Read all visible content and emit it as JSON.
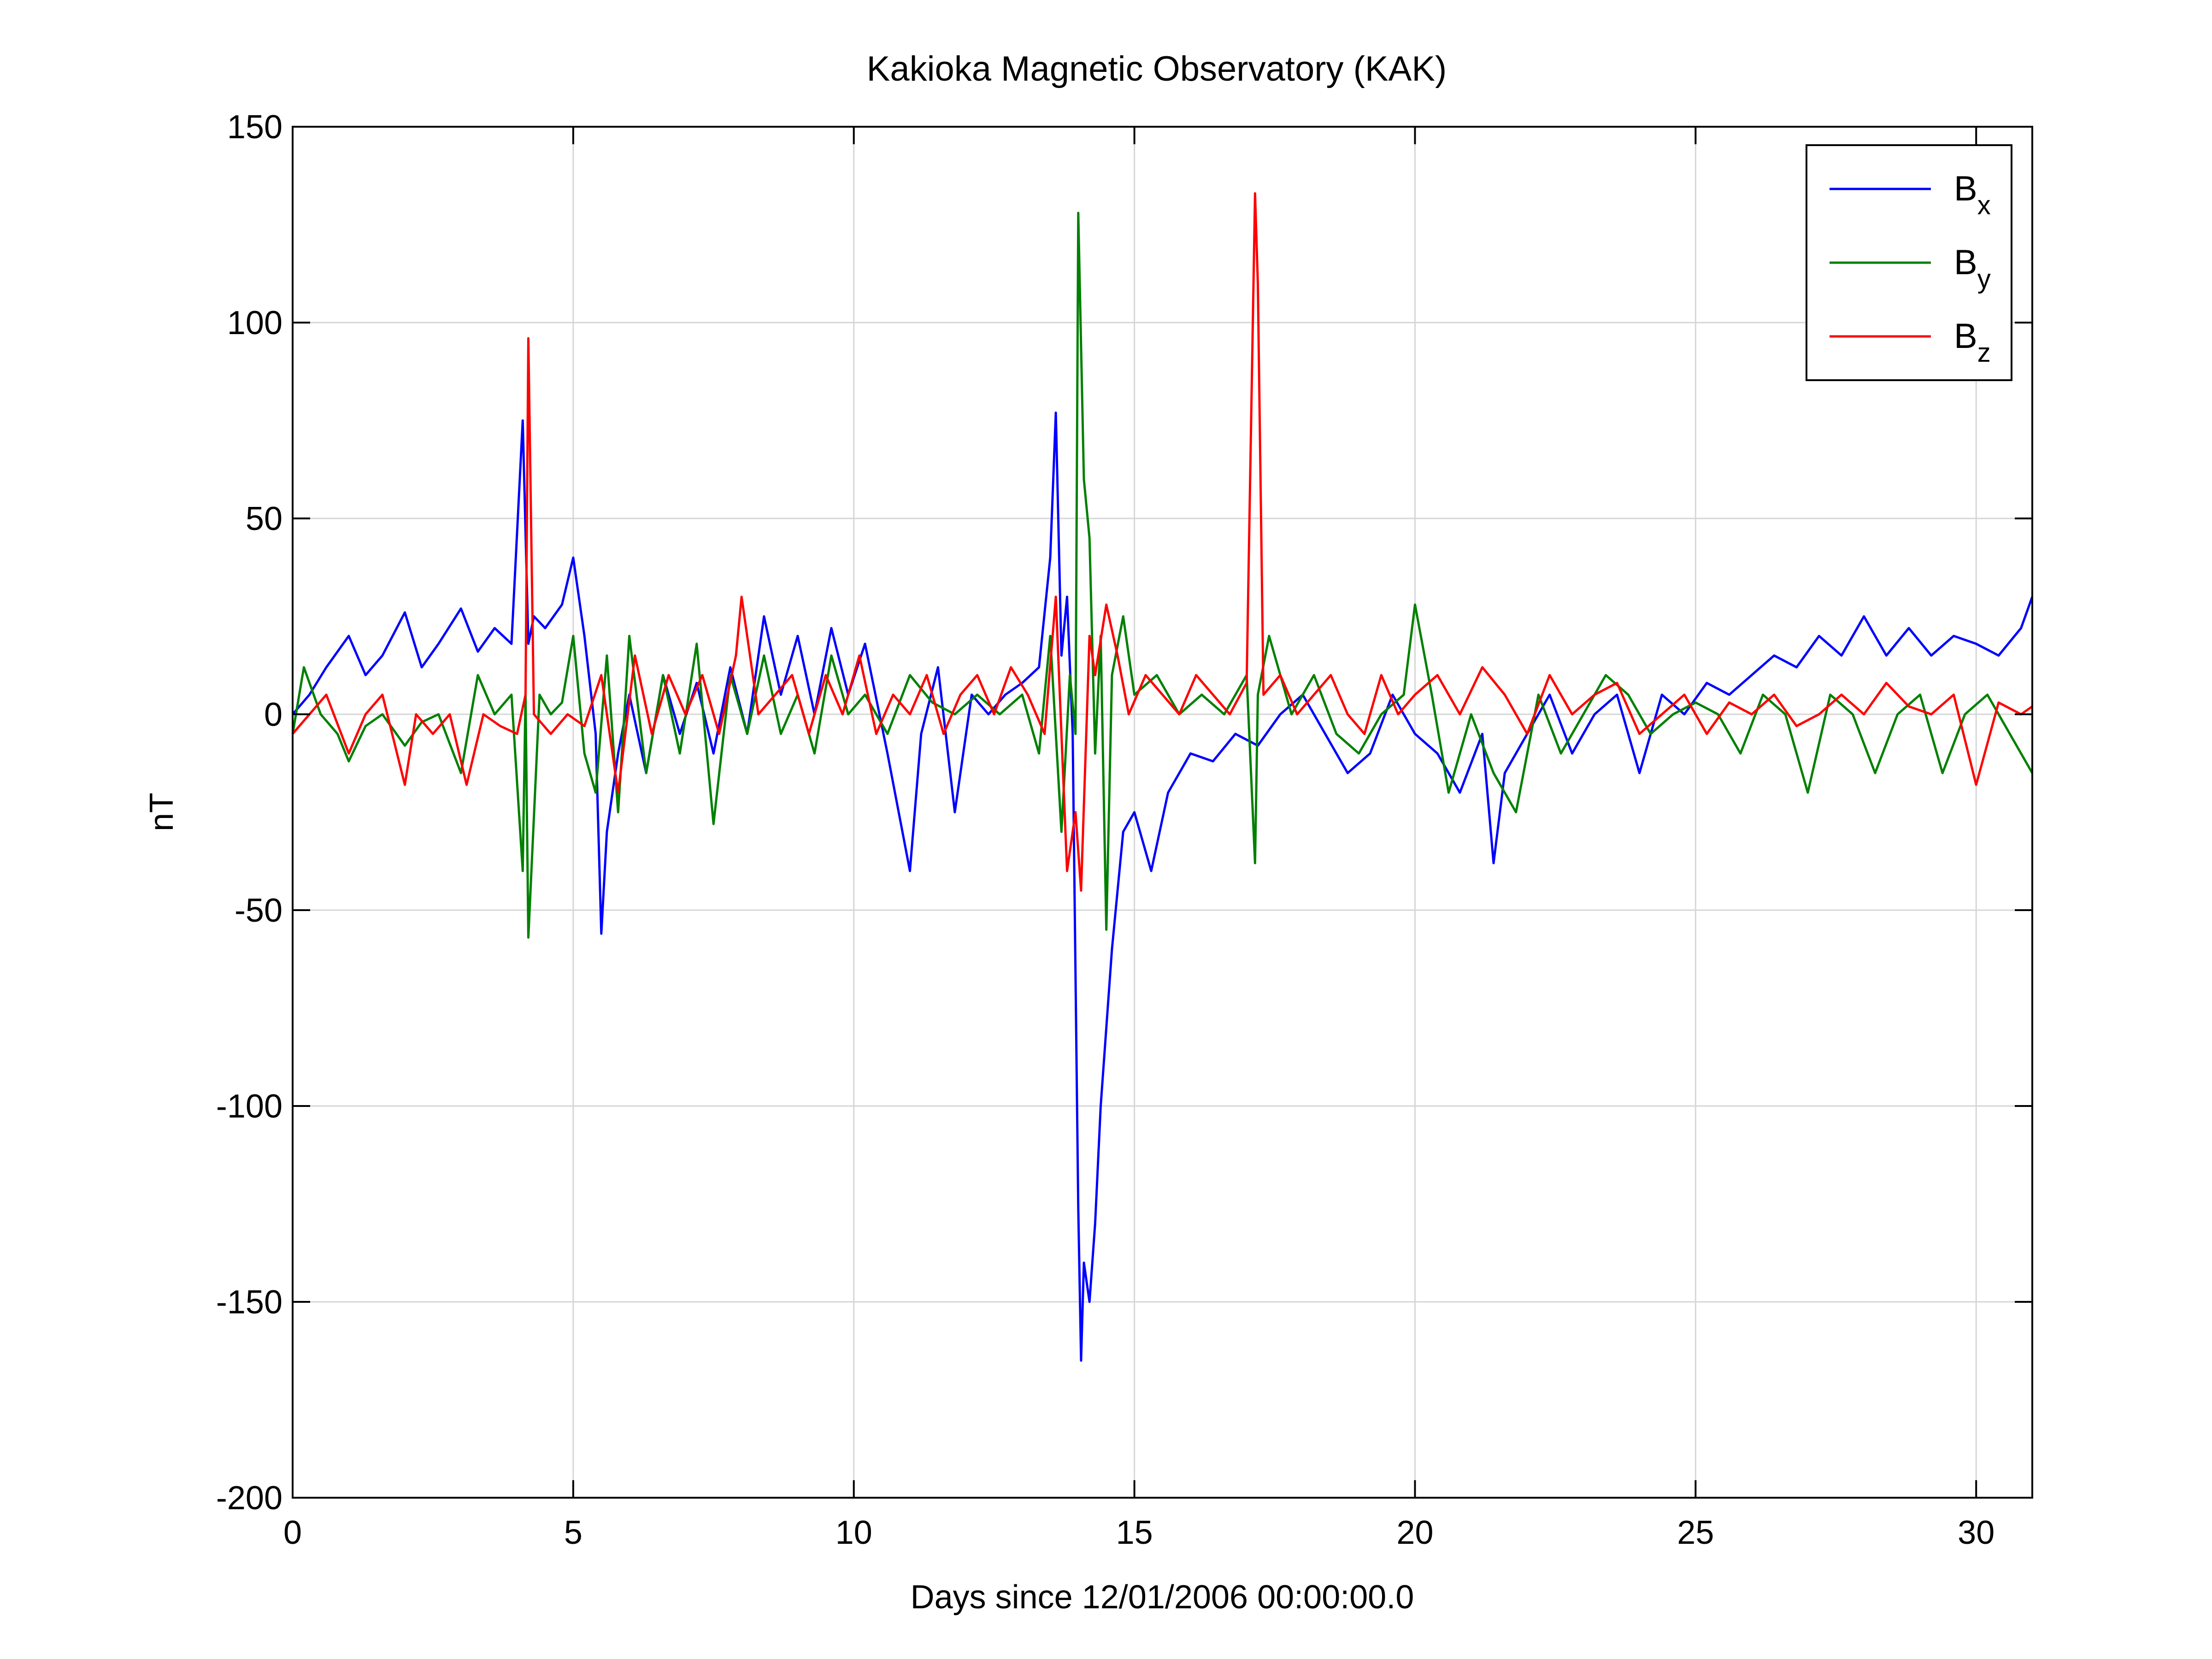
{
  "chart_data": {
    "type": "line",
    "title": "Kakioka Magnetic Observatory (KAK)",
    "xlabel": "Days since 12/01/2006 00:00:00.0",
    "ylabel": "nT",
    "xlim": [
      0,
      31
    ],
    "ylim": [
      -200,
      150
    ],
    "grid": true,
    "legend_position": "top-right",
    "xticks": [
      0,
      5,
      10,
      15,
      20,
      25,
      30
    ],
    "yticks": [
      150,
      100,
      50,
      0,
      -50,
      -100,
      -150,
      -200
    ],
    "series": [
      {
        "name": "B",
        "subscript": "x",
        "color": "#0000ff",
        "x": [
          0,
          0.3,
          0.6,
          1.0,
          1.3,
          1.6,
          2.0,
          2.3,
          2.6,
          3.0,
          3.3,
          3.6,
          3.9,
          4.1,
          4.2,
          4.3,
          4.5,
          4.8,
          5.0,
          5.2,
          5.4,
          5.5,
          5.6,
          5.8,
          6.0,
          6.3,
          6.6,
          6.9,
          7.2,
          7.5,
          7.8,
          8.1,
          8.4,
          8.7,
          9.0,
          9.3,
          9.6,
          9.9,
          10.2,
          10.6,
          11.0,
          11.2,
          11.5,
          11.8,
          12.1,
          12.4,
          12.7,
          13.0,
          13.3,
          13.5,
          13.6,
          13.7,
          13.8,
          13.9,
          14.0,
          14.05,
          14.1,
          14.2,
          14.3,
          14.4,
          14.5,
          14.6,
          14.7,
          14.8,
          15.0,
          15.3,
          15.6,
          16.0,
          16.4,
          16.8,
          17.2,
          17.6,
          18.0,
          18.4,
          18.8,
          19.2,
          19.6,
          20.0,
          20.4,
          20.8,
          21.2,
          21.4,
          21.6,
          22.0,
          22.4,
          22.8,
          23.2,
          23.6,
          24.0,
          24.4,
          24.8,
          25.2,
          25.6,
          26.0,
          26.4,
          26.8,
          27.2,
          27.6,
          28.0,
          28.4,
          28.8,
          29.2,
          29.6,
          30.0,
          30.4,
          30.8,
          31.0
        ],
        "y": [
          0,
          5,
          12,
          20,
          10,
          15,
          26,
          12,
          18,
          27,
          16,
          22,
          18,
          75,
          18,
          25,
          22,
          28,
          40,
          20,
          -5,
          -56,
          -30,
          -10,
          5,
          -15,
          10,
          -5,
          8,
          -10,
          12,
          -5,
          25,
          5,
          20,
          0,
          22,
          5,
          18,
          -10,
          -40,
          -5,
          12,
          -25,
          5,
          0,
          5,
          8,
          12,
          40,
          77,
          15,
          30,
          -5,
          -126,
          -165,
          -140,
          -150,
          -130,
          -100,
          -80,
          -60,
          -45,
          -30,
          -25,
          -40,
          -20,
          -10,
          -12,
          -5,
          -8,
          0,
          5,
          -5,
          -15,
          -10,
          5,
          -5,
          -10,
          -20,
          -5,
          -38,
          -15,
          -5,
          5,
          -10,
          0,
          5,
          -15,
          5,
          0,
          8,
          5,
          10,
          15,
          12,
          20,
          15,
          25,
          15,
          22,
          15,
          20,
          18,
          15,
          22,
          30
        ]
      },
      {
        "name": "B",
        "subscript": "y",
        "color": "#008000",
        "x": [
          0,
          0.2,
          0.5,
          0.8,
          1.0,
          1.3,
          1.6,
          2.0,
          2.3,
          2.6,
          3.0,
          3.3,
          3.6,
          3.9,
          4.1,
          4.15,
          4.2,
          4.4,
          4.6,
          4.8,
          5.0,
          5.2,
          5.4,
          5.6,
          5.8,
          6.0,
          6.3,
          6.6,
          6.9,
          7.2,
          7.5,
          7.8,
          8.1,
          8.4,
          8.7,
          9.0,
          9.3,
          9.6,
          9.9,
          10.2,
          10.6,
          11.0,
          11.4,
          11.8,
          12.2,
          12.6,
          13.0,
          13.3,
          13.5,
          13.7,
          13.85,
          13.95,
          14.0,
          14.1,
          14.2,
          14.3,
          14.4,
          14.5,
          14.6,
          14.8,
          15.0,
          15.4,
          15.8,
          16.2,
          16.6,
          17.0,
          17.15,
          17.2,
          17.4,
          17.8,
          18.2,
          18.6,
          19.0,
          19.4,
          19.8,
          20.0,
          20.3,
          20.6,
          21.0,
          21.4,
          21.8,
          22.2,
          22.6,
          23.0,
          23.4,
          23.8,
          24.2,
          24.6,
          25.0,
          25.4,
          25.8,
          26.2,
          26.6,
          27.0,
          27.4,
          27.8,
          28.2,
          28.6,
          29.0,
          29.4,
          29.8,
          30.2,
          30.6,
          31.0
        ],
        "y": [
          -5,
          12,
          0,
          -5,
          -12,
          -3,
          0,
          -8,
          -2,
          0,
          -15,
          10,
          0,
          5,
          -40,
          5,
          -57,
          5,
          0,
          3,
          20,
          -10,
          -20,
          15,
          -25,
          20,
          -15,
          10,
          -10,
          18,
          -28,
          10,
          -5,
          15,
          -5,
          5,
          -10,
          15,
          0,
          5,
          -5,
          10,
          3,
          0,
          5,
          0,
          5,
          -10,
          20,
          -30,
          10,
          -5,
          128,
          60,
          45,
          -10,
          20,
          -55,
          10,
          25,
          5,
          10,
          0,
          5,
          0,
          10,
          -38,
          5,
          20,
          0,
          10,
          -5,
          -10,
          0,
          5,
          28,
          5,
          -20,
          0,
          -15,
          -25,
          5,
          -10,
          0,
          10,
          5,
          -5,
          0,
          3,
          0,
          -10,
          5,
          0,
          -20,
          5,
          0,
          -15,
          0,
          5,
          -15,
          0,
          5,
          -5,
          -15
        ]
      },
      {
        "name": "B",
        "subscript": "z",
        "color": "#ff0000",
        "x": [
          0,
          0.3,
          0.6,
          1.0,
          1.3,
          1.6,
          2.0,
          2.2,
          2.5,
          2.8,
          3.1,
          3.4,
          3.7,
          4.0,
          4.15,
          4.2,
          4.3,
          4.6,
          4.9,
          5.2,
          5.5,
          5.8,
          6.1,
          6.4,
          6.7,
          7.0,
          7.3,
          7.6,
          7.9,
          8.0,
          8.3,
          8.6,
          8.9,
          9.2,
          9.5,
          9.8,
          10.1,
          10.4,
          10.7,
          11.0,
          11.3,
          11.6,
          11.9,
          12.2,
          12.5,
          12.8,
          13.1,
          13.4,
          13.6,
          13.8,
          13.95,
          14.05,
          14.2,
          14.3,
          14.5,
          14.7,
          14.9,
          15.2,
          15.5,
          15.8,
          16.1,
          16.4,
          16.7,
          17.0,
          17.15,
          17.2,
          17.3,
          17.6,
          17.9,
          18.2,
          18.5,
          18.8,
          19.1,
          19.4,
          19.7,
          20.0,
          20.4,
          20.8,
          21.2,
          21.6,
          22.0,
          22.4,
          22.8,
          23.2,
          23.6,
          24.0,
          24.4,
          24.8,
          25.2,
          25.6,
          26.0,
          26.4,
          26.8,
          27.2,
          27.6,
          28.0,
          28.4,
          28.8,
          29.2,
          29.6,
          30.0,
          30.4,
          30.8,
          31.0
        ],
        "y": [
          -5,
          0,
          5,
          -10,
          0,
          5,
          -18,
          0,
          -5,
          0,
          -18,
          0,
          -3,
          -5,
          5,
          96,
          0,
          -5,
          0,
          -3,
          10,
          -20,
          15,
          -5,
          10,
          0,
          10,
          -5,
          15,
          30,
          0,
          5,
          10,
          -5,
          10,
          0,
          15,
          -5,
          5,
          0,
          10,
          -5,
          5,
          10,
          0,
          12,
          5,
          -5,
          30,
          -40,
          -25,
          -45,
          20,
          10,
          28,
          15,
          0,
          10,
          5,
          0,
          10,
          5,
          0,
          8,
          133,
          110,
          5,
          10,
          0,
          5,
          10,
          0,
          -5,
          10,
          0,
          5,
          10,
          0,
          12,
          5,
          -5,
          10,
          0,
          5,
          8,
          -5,
          0,
          5,
          -5,
          3,
          0,
          5,
          -3,
          0,
          5,
          0,
          8,
          2,
          0,
          5,
          -18,
          3,
          0,
          2
        ]
      }
    ]
  }
}
